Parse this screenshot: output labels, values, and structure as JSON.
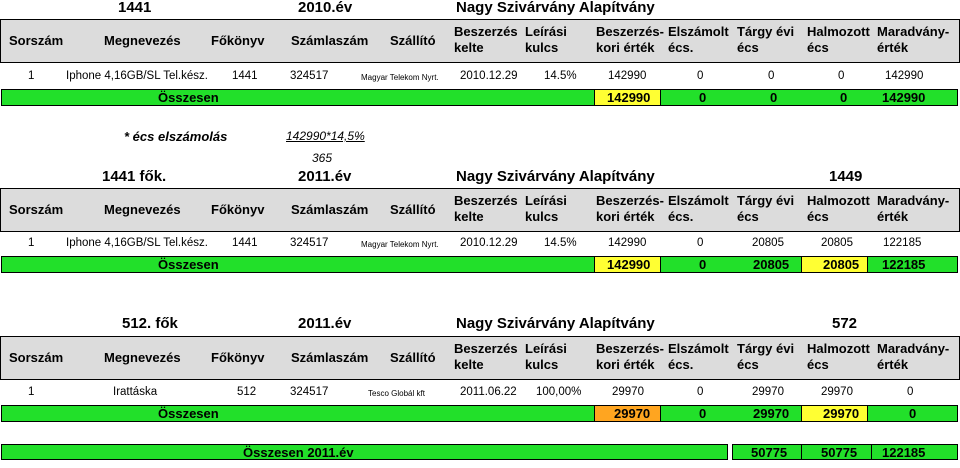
{
  "header": {
    "cols": [
      "Sorszám",
      "Megnevezés",
      "Főkönyv",
      "Számlaszám",
      "Szállító",
      "Beszerzés",
      "kelte",
      "Leírási",
      "kulcs",
      "Beszerzés-",
      "kori érték",
      "Elszámolt",
      "écs.",
      "Tárgy évi",
      "écs",
      "Halmozott",
      "écs",
      "Maradvány-",
      "érték"
    ]
  },
  "section1": {
    "title_code": "1441",
    "title_year": "2010.év",
    "title_org": "Nagy Szivárvány Alapítvány",
    "row": [
      "1",
      "Iphone 4,16GB/SL Tel.kész.",
      "1441",
      "324517",
      "Magyar Telekom Nyrt.",
      "2010.12.29",
      "14.5%",
      "142990",
      "0",
      "0",
      "0",
      "142990"
    ],
    "total_label": "Összesen",
    "totals": [
      "142990",
      "0",
      "0",
      "0",
      "142990"
    ]
  },
  "note": {
    "label": "* écs elszámolás",
    "formula": "142990*14,5%",
    "divisor": "365"
  },
  "section2": {
    "title_code": "1441 fők.",
    "title_year": "2011.év",
    "title_org": "Nagy Szivárvány Alapítvány",
    "title_num": "1449",
    "row": [
      "1",
      "Iphone 4,16GB/SL Tel.kész.",
      "1441",
      "324517",
      "Magyar Telekom Nyrt.",
      "2010.12.29",
      "14.5%",
      "142990",
      "0",
      "20805",
      "20805",
      "122185"
    ],
    "total_label": "Összesen",
    "totals": [
      "142990",
      "0",
      "20805",
      "20805",
      "122185"
    ]
  },
  "section3": {
    "title_code": "512. fők",
    "title_year": "2011.év",
    "title_org": "Nagy Szivárvány Alapítvány",
    "title_num": "572",
    "row": [
      "1",
      "Irattáska",
      "512",
      "324517",
      "Tesco Globál kft",
      "2011.06.22",
      "100,00%",
      "29970",
      "0",
      "29970",
      "29970",
      "0"
    ],
    "total_label": "Összesen",
    "totals": [
      "29970",
      "0",
      "29970",
      "29970",
      "0"
    ]
  },
  "grand": {
    "label": "Összesen 2011.év",
    "values": [
      "50775",
      "50775",
      "122185"
    ]
  },
  "colors": {
    "header_bg": "#dcdcdc",
    "total_green": "#22e02a",
    "highlight_yellow": "#ffff33",
    "highlight_orange": "#ffa520",
    "grand_green": "#22e02a"
  }
}
